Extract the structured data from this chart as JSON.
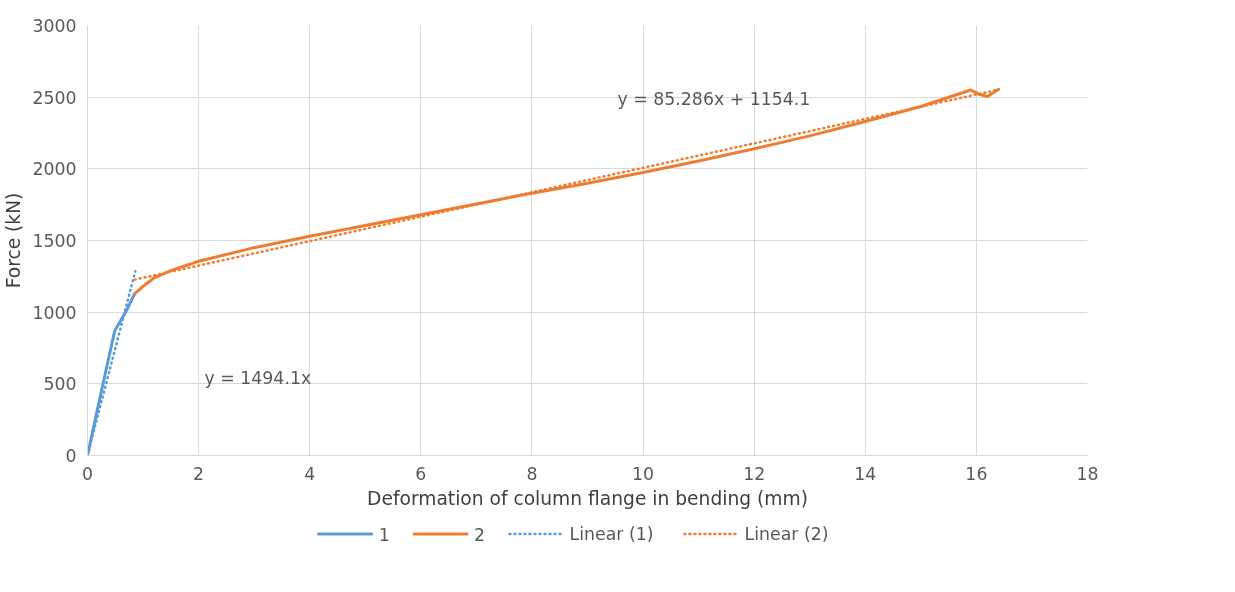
{
  "chart_data": {
    "type": "line",
    "xlabel": "Deformation of column flange in bending (mm)",
    "ylabel": "Force (kN)",
    "xlim": [
      0,
      18
    ],
    "xticks": [
      0,
      2,
      4,
      6,
      8,
      10,
      12,
      14,
      16,
      18
    ],
    "ylim": [
      0,
      3000
    ],
    "yticks": [
      0,
      500,
      1000,
      1500,
      2000,
      2500,
      3000
    ],
    "grid": true,
    "legend": "bottom",
    "marker": "none",
    "series": [
      {
        "name": "1",
        "color": "#5b9bd5",
        "line_style": "solid",
        "x": [
          0,
          0.2,
          0.49,
          0.7,
          0.85
        ],
        "values": [
          0,
          360,
          870,
          1010,
          1130
        ]
      },
      {
        "name": "2",
        "color": "#ed7d31",
        "line_style": "solid",
        "x": [
          0.85,
          1,
          1.2,
          1.5,
          2,
          3,
          4,
          5,
          6,
          7,
          8,
          9,
          10,
          11,
          12,
          13,
          14,
          15,
          15.9,
          16.05,
          16.2,
          16.4
        ],
        "values": [
          1130,
          1180,
          1240,
          1290,
          1355,
          1450,
          1530,
          1605,
          1680,
          1755,
          1830,
          1900,
          1975,
          2055,
          2140,
          2230,
          2330,
          2435,
          2550,
          2520,
          2505,
          2555
        ]
      },
      {
        "name": "Linear (1)",
        "color": "#5b9bd5",
        "line_style": "dotted",
        "x": [
          0,
          0.86
        ],
        "values": [
          0,
          1285
        ]
      },
      {
        "name": "Linear (2)",
        "color": "#ed7d31",
        "line_style": "dotted",
        "x": [
          0.85,
          16.4
        ],
        "values": [
          1227,
          2553
        ]
      }
    ],
    "annotations": [
      "y = 1494.1x",
      "y = 85.286x + 1154.1"
    ]
  }
}
